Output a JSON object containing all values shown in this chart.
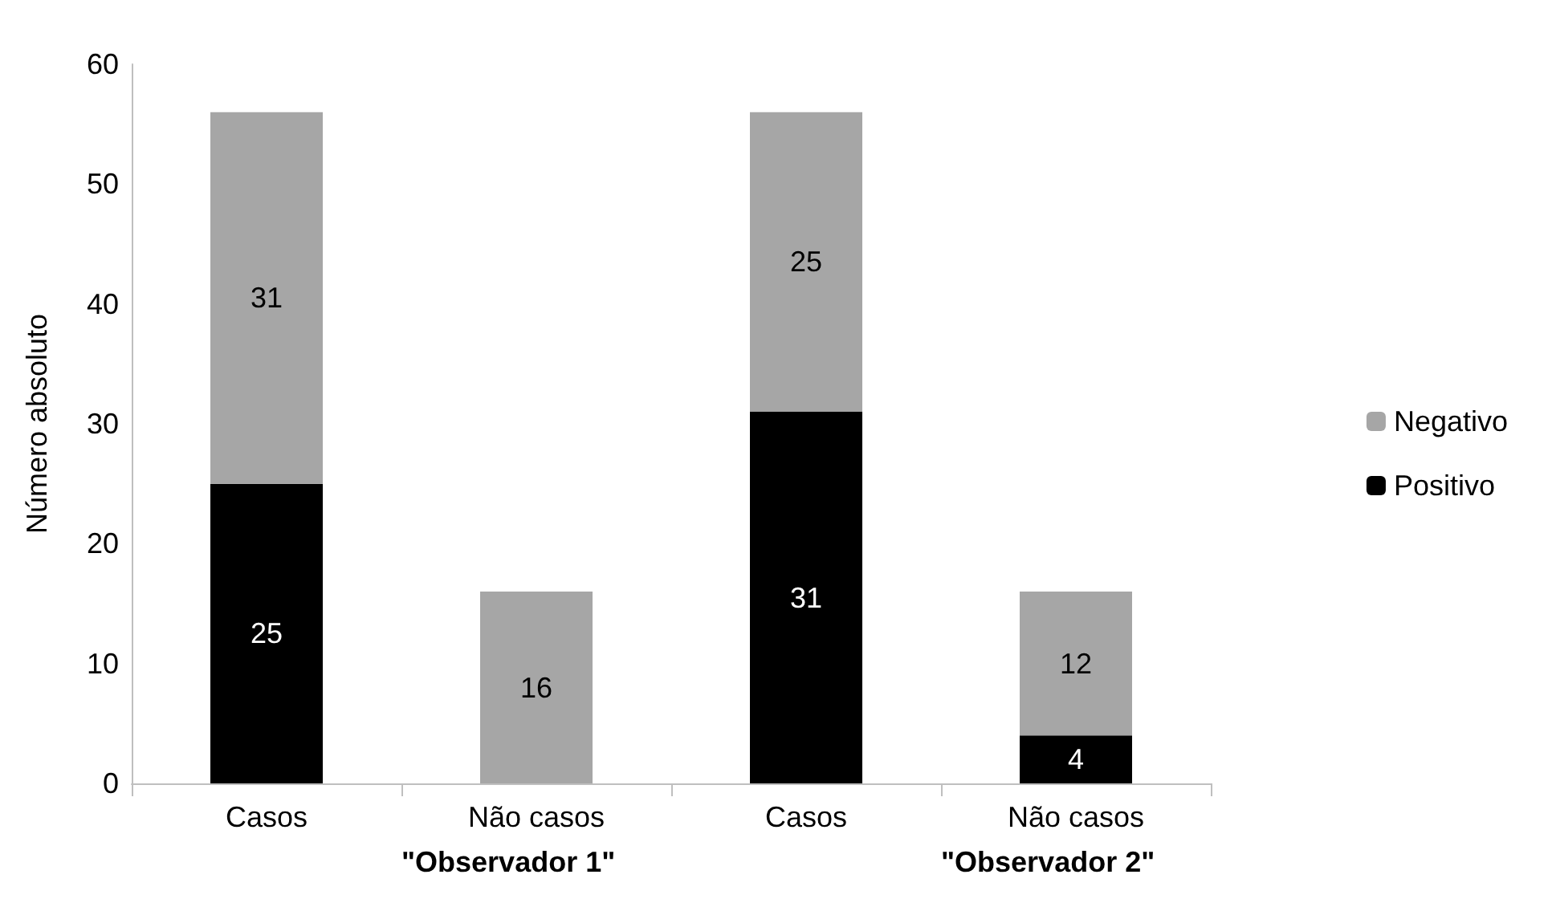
{
  "chart_data": {
    "type": "bar",
    "stacked": true,
    "ylabel": "Número absoluto",
    "categories": [
      "Casos",
      "Não casos",
      "Casos",
      "Não casos"
    ],
    "series": [
      {
        "name": "Positivo",
        "color": "#000000",
        "values": [
          25,
          null,
          31,
          4
        ]
      },
      {
        "name": "Negativo",
        "color": "#a6a6a6",
        "values": [
          31,
          16,
          25,
          12
        ]
      }
    ],
    "ylim": [
      0,
      60
    ],
    "yticks": [
      0,
      10,
      20,
      30,
      40,
      50,
      60
    ],
    "grid": false,
    "legend": "right",
    "data_labels": true,
    "annotations": [
      "\"Observador 1\"",
      "\"Observador 2\""
    ]
  }
}
